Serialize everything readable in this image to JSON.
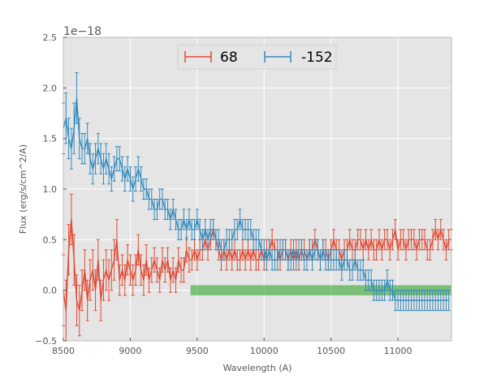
{
  "chart_data": {
    "type": "line",
    "title": "",
    "xlabel": "Wavelength (A)",
    "ylabel": "Flux (erg/s/cm^2/A)",
    "xlim": [
      8500,
      11400
    ],
    "ylim": [
      -0.5,
      2.5
    ],
    "y_scale_label": "1e−18",
    "xticks": [
      8500,
      9000,
      9500,
      10000,
      10500,
      11000
    ],
    "yticks": [
      -0.5,
      0.0,
      0.5,
      1.0,
      1.5,
      2.0,
      2.5
    ],
    "xtick_labels": [
      "8500",
      "9000",
      "9500",
      "10000",
      "10500",
      "11000"
    ],
    "ytick_labels": [
      "−0.5",
      "0.0",
      "0.5",
      "1.0",
      "1.5",
      "2.0",
      "2.5"
    ],
    "grid": true,
    "legend_position": "top-center",
    "band": {
      "x_start": 9450,
      "x_end": 11400,
      "y_low": -0.05,
      "y_high": 0.05,
      "color": "#4daf4a"
    },
    "series": [
      {
        "name": "68",
        "color": "#e24a33",
        "x_start": 8500,
        "x_step": 20,
        "values": [
          0.0,
          -0.2,
          0.4,
          0.7,
          0.3,
          -0.1,
          -0.2,
          0.0,
          0.2,
          -0.1,
          0.1,
          0.2,
          0.0,
          0.3,
          -0.1,
          0.1,
          0.2,
          0.1,
          0.2,
          0.3,
          0.5,
          0.1,
          0.2,
          0.1,
          0.3,
          0.2,
          0.1,
          0.2,
          0.4,
          0.2,
          0.1,
          0.3,
          0.1,
          0.2,
          0.3,
          0.2,
          0.1,
          0.3,
          0.2,
          0.3,
          0.1,
          0.2,
          0.1,
          0.3,
          0.2,
          0.2,
          0.4,
          0.3,
          0.3,
          0.4,
          0.3,
          0.4,
          0.4,
          0.5,
          0.4,
          0.5,
          0.6,
          0.5,
          0.4,
          0.3,
          0.4,
          0.3,
          0.4,
          0.3,
          0.4,
          0.3,
          0.3,
          0.4,
          0.3,
          0.4,
          0.3,
          0.4,
          0.3,
          0.3,
          0.4,
          0.3,
          0.4,
          0.4,
          0.5,
          0.4,
          0.4,
          0.3,
          0.4,
          0.4,
          0.3,
          0.4,
          0.3,
          0.4,
          0.3,
          0.4,
          0.4,
          0.3,
          0.4,
          0.4,
          0.5,
          0.4,
          0.3,
          0.4,
          0.4,
          0.3,
          0.4,
          0.5,
          0.4,
          0.4,
          0.3,
          0.4,
          0.4,
          0.5,
          0.4,
          0.4,
          0.5,
          0.5,
          0.4,
          0.5,
          0.4,
          0.5,
          0.4,
          0.4,
          0.5,
          0.4,
          0.5,
          0.5,
          0.4,
          0.5,
          0.6,
          0.4,
          0.5,
          0.5,
          0.4,
          0.5,
          0.5,
          0.5,
          0.4,
          0.5,
          0.5,
          0.5,
          0.4,
          0.4,
          0.5,
          0.6,
          0.5,
          0.6,
          0.5,
          0.4,
          0.5,
          0.5
        ],
        "errors": [
          0.35,
          0.3,
          0.25,
          0.25,
          0.25,
          0.25,
          0.25,
          0.2,
          0.2,
          0.2,
          0.2,
          0.2,
          0.2,
          0.2,
          0.2,
          0.2,
          0.2,
          0.2,
          0.2,
          0.2,
          0.2,
          0.15,
          0.15,
          0.15,
          0.15,
          0.15,
          0.15,
          0.15,
          0.15,
          0.15,
          0.15,
          0.15,
          0.12,
          0.12,
          0.12,
          0.12,
          0.12,
          0.12,
          0.12,
          0.12,
          0.12,
          0.12,
          0.12,
          0.12,
          0.12,
          0.12,
          0.12,
          0.12,
          0.1,
          0.1,
          0.1,
          0.1,
          0.1,
          0.1,
          0.1,
          0.1,
          0.1,
          0.1,
          0.1,
          0.1,
          0.1,
          0.1,
          0.1,
          0.1,
          0.1,
          0.1,
          0.1,
          0.1,
          0.1,
          0.1,
          0.1,
          0.1,
          0.1,
          0.1,
          0.1,
          0.1,
          0.1,
          0.1,
          0.1,
          0.1,
          0.1,
          0.1,
          0.1,
          0.1,
          0.1,
          0.1,
          0.1,
          0.1,
          0.1,
          0.1,
          0.1,
          0.1,
          0.1,
          0.1,
          0.1,
          0.1,
          0.1,
          0.1,
          0.1,
          0.1,
          0.1,
          0.1,
          0.1,
          0.1,
          0.1,
          0.1,
          0.1,
          0.1,
          0.1,
          0.1,
          0.1,
          0.1,
          0.1,
          0.1,
          0.1,
          0.1,
          0.1,
          0.1,
          0.1,
          0.1,
          0.1,
          0.1,
          0.1,
          0.1,
          0.1,
          0.1,
          0.1,
          0.1,
          0.1,
          0.1,
          0.1,
          0.1,
          0.1,
          0.1,
          0.1,
          0.1,
          0.1,
          0.1,
          0.1,
          0.1,
          0.1,
          0.1,
          0.1,
          0.1,
          0.1,
          0.1
        ]
      },
      {
        "name": "-152",
        "color": "#348abd",
        "x_start": 8500,
        "x_step": 20,
        "values": [
          1.6,
          1.7,
          1.5,
          1.4,
          1.6,
          1.9,
          1.5,
          1.4,
          1.4,
          1.5,
          1.3,
          1.2,
          1.3,
          1.4,
          1.3,
          1.2,
          1.3,
          1.2,
          1.1,
          1.2,
          1.3,
          1.3,
          1.2,
          1.1,
          1.2,
          1.1,
          1.0,
          1.1,
          1.2,
          1.1,
          1.0,
          1.0,
          0.9,
          0.9,
          0.8,
          0.8,
          0.9,
          0.9,
          0.8,
          0.8,
          0.7,
          0.8,
          0.7,
          0.6,
          0.6,
          0.7,
          0.6,
          0.7,
          0.6,
          0.6,
          0.7,
          0.6,
          0.5,
          0.6,
          0.5,
          0.6,
          0.6,
          0.5,
          0.5,
          0.4,
          0.4,
          0.5,
          0.5,
          0.5,
          0.6,
          0.6,
          0.7,
          0.6,
          0.6,
          0.6,
          0.6,
          0.5,
          0.5,
          0.5,
          0.4,
          0.4,
          0.3,
          0.4,
          0.3,
          0.3,
          0.3,
          0.4,
          0.4,
          0.4,
          0.3,
          0.3,
          0.4,
          0.3,
          0.4,
          0.4,
          0.3,
          0.3,
          0.4,
          0.3,
          0.4,
          0.4,
          0.3,
          0.4,
          0.3,
          0.3,
          0.3,
          0.3,
          0.3,
          0.3,
          0.2,
          0.3,
          0.3,
          0.2,
          0.2,
          0.3,
          0.2,
          0.2,
          0.2,
          0.1,
          0.1,
          0.1,
          0.0,
          0.0,
          0.0,
          0.0,
          0.0,
          0.1,
          0.0,
          0.0,
          -0.1,
          -0.1,
          -0.1,
          -0.1,
          -0.1,
          -0.1,
          -0.1,
          -0.1,
          -0.1,
          -0.1,
          -0.1,
          -0.1,
          -0.1,
          -0.1,
          -0.1,
          -0.1,
          -0.1,
          -0.1,
          -0.1,
          -0.1,
          -0.1
        ],
        "errors": [
          0.25,
          0.25,
          0.2,
          0.2,
          0.25,
          0.25,
          0.2,
          0.15,
          0.15,
          0.15,
          0.15,
          0.15,
          0.15,
          0.15,
          0.15,
          0.15,
          0.15,
          0.15,
          0.12,
          0.12,
          0.12,
          0.12,
          0.12,
          0.12,
          0.12,
          0.12,
          0.12,
          0.12,
          0.12,
          0.12,
          0.1,
          0.1,
          0.1,
          0.1,
          0.1,
          0.1,
          0.1,
          0.1,
          0.1,
          0.1,
          0.1,
          0.1,
          0.1,
          0.1,
          0.1,
          0.1,
          0.1,
          0.1,
          0.1,
          0.1,
          0.1,
          0.1,
          0.1,
          0.1,
          0.1,
          0.1,
          0.1,
          0.1,
          0.1,
          0.1,
          0.1,
          0.1,
          0.1,
          0.1,
          0.1,
          0.1,
          0.1,
          0.1,
          0.1,
          0.1,
          0.1,
          0.1,
          0.1,
          0.1,
          0.1,
          0.1,
          0.1,
          0.1,
          0.1,
          0.1,
          0.1,
          0.1,
          0.1,
          0.1,
          0.1,
          0.1,
          0.1,
          0.1,
          0.1,
          0.1,
          0.1,
          0.1,
          0.1,
          0.1,
          0.1,
          0.1,
          0.1,
          0.1,
          0.1,
          0.1,
          0.1,
          0.1,
          0.1,
          0.1,
          0.1,
          0.1,
          0.1,
          0.1,
          0.1,
          0.1,
          0.1,
          0.1,
          0.1,
          0.1,
          0.1,
          0.1,
          0.1,
          0.1,
          0.1,
          0.1,
          0.1,
          0.1,
          0.1,
          0.1,
          0.1,
          0.1,
          0.1,
          0.1,
          0.1,
          0.1,
          0.1,
          0.1,
          0.1,
          0.1,
          0.1,
          0.1,
          0.1,
          0.1,
          0.1,
          0.1,
          0.1,
          0.1,
          0.1,
          0.1,
          0.1
        ]
      }
    ]
  }
}
